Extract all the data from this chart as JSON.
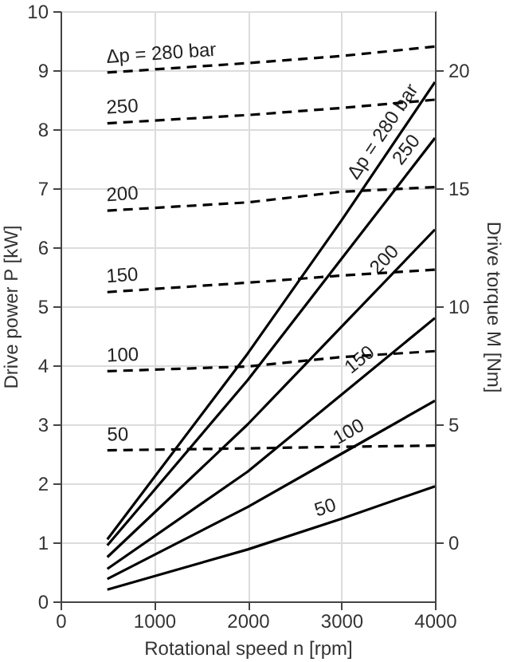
{
  "chart_data": {
    "type": "line",
    "xlabel": "Rotational speed n [rpm]",
    "ylabel": "Drive power P [kW]",
    "y2label": "Drive torque M [Nm]",
    "x": [
      500,
      2000,
      3000,
      4000
    ],
    "series": [
      {
        "name": "Δp = 280 bar",
        "color": "#000000",
        "line_style": "solid",
        "values": [
          1.05,
          4.2,
          6.45,
          8.8
        ]
      },
      {
        "name": "250",
        "color": "#000000",
        "line_style": "solid",
        "values": [
          0.95,
          3.75,
          5.8,
          7.85
        ]
      },
      {
        "name": "200",
        "color": "#000000",
        "line_style": "solid",
        "values": [
          0.75,
          3.0,
          4.65,
          6.3
        ]
      },
      {
        "name": "150",
        "color": "#000000",
        "line_style": "solid",
        "values": [
          0.55,
          2.2,
          3.5,
          4.8
        ]
      },
      {
        "name": "100",
        "color": "#000000",
        "line_style": "solid",
        "values": [
          0.38,
          1.6,
          2.5,
          3.4
        ]
      },
      {
        "name": "50",
        "color": "#000000",
        "line_style": "solid",
        "values": [
          0.2,
          0.88,
          1.4,
          1.95
        ]
      },
      {
        "name": "Δp = 280 bar",
        "color": "#000000",
        "line_style": "dashed",
        "axis": "y2",
        "values": [
          19.9,
          20.3,
          20.6,
          21.0
        ]
      },
      {
        "name": "250",
        "color": "#000000",
        "line_style": "dashed",
        "axis": "y2",
        "values": [
          17.75,
          18.1,
          18.4,
          18.75
        ]
      },
      {
        "name": "200",
        "color": "#000000",
        "line_style": "dashed",
        "axis": "y2",
        "values": [
          14.05,
          14.4,
          14.85,
          15.05
        ]
      },
      {
        "name": "150",
        "color": "#000000",
        "line_style": "dashed",
        "axis": "y2",
        "values": [
          10.6,
          11.0,
          11.3,
          11.55
        ]
      },
      {
        "name": "100",
        "color": "#000000",
        "line_style": "dashed",
        "axis": "y2",
        "values": [
          7.25,
          7.45,
          7.85,
          8.1
        ]
      },
      {
        "name": "50",
        "color": "#000000",
        "line_style": "dashed",
        "axis": "y2",
        "values": [
          3.9,
          3.98,
          4.05,
          4.1
        ]
      }
    ],
    "xlim": [
      0,
      4000
    ],
    "xticks": [
      0,
      1000,
      2000,
      3000,
      4000
    ],
    "ylim": [
      0,
      10
    ],
    "yticks": [
      0,
      1,
      2,
      3,
      4,
      5,
      6,
      7,
      8,
      9,
      10
    ],
    "y2lim": [
      -2.5,
      22.5
    ],
    "y2ticks": [
      0,
      5,
      10,
      15,
      20
    ],
    "grid": true
  }
}
